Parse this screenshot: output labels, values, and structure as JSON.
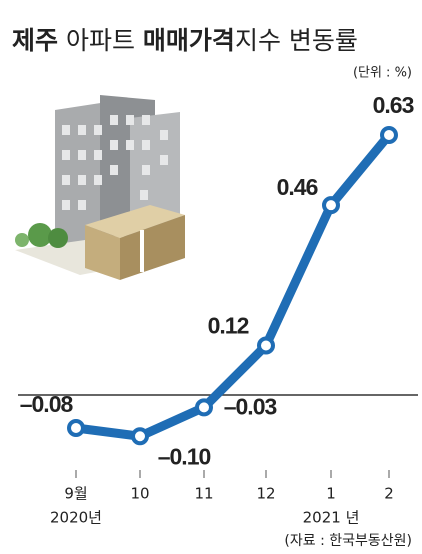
{
  "chart_data": {
    "type": "line",
    "title": [
      {
        "text": "제주",
        "bold": true
      },
      {
        "text": " 아파트 ",
        "bold": false
      },
      {
        "text": "매매가격",
        "bold": true
      },
      {
        "text": "지수 변동률",
        "bold": false
      }
    ],
    "unit": "(단위 : %)",
    "source": "(자료 : 한국부동산원)",
    "categories": [
      "9월",
      "10",
      "11",
      "12",
      "1",
      "2"
    ],
    "category_years": [
      "2020년",
      null,
      null,
      null,
      "2021 년",
      null
    ],
    "series": [
      {
        "name": null,
        "color": "#1f6db5",
        "values": [
          -0.08,
          -0.1,
          -0.03,
          0.12,
          0.46,
          0.63
        ],
        "value_labels": [
          "–0.08",
          "–0.10",
          "–0.03",
          "0.12",
          "0.46",
          "0.63"
        ]
      }
    ]
  }
}
